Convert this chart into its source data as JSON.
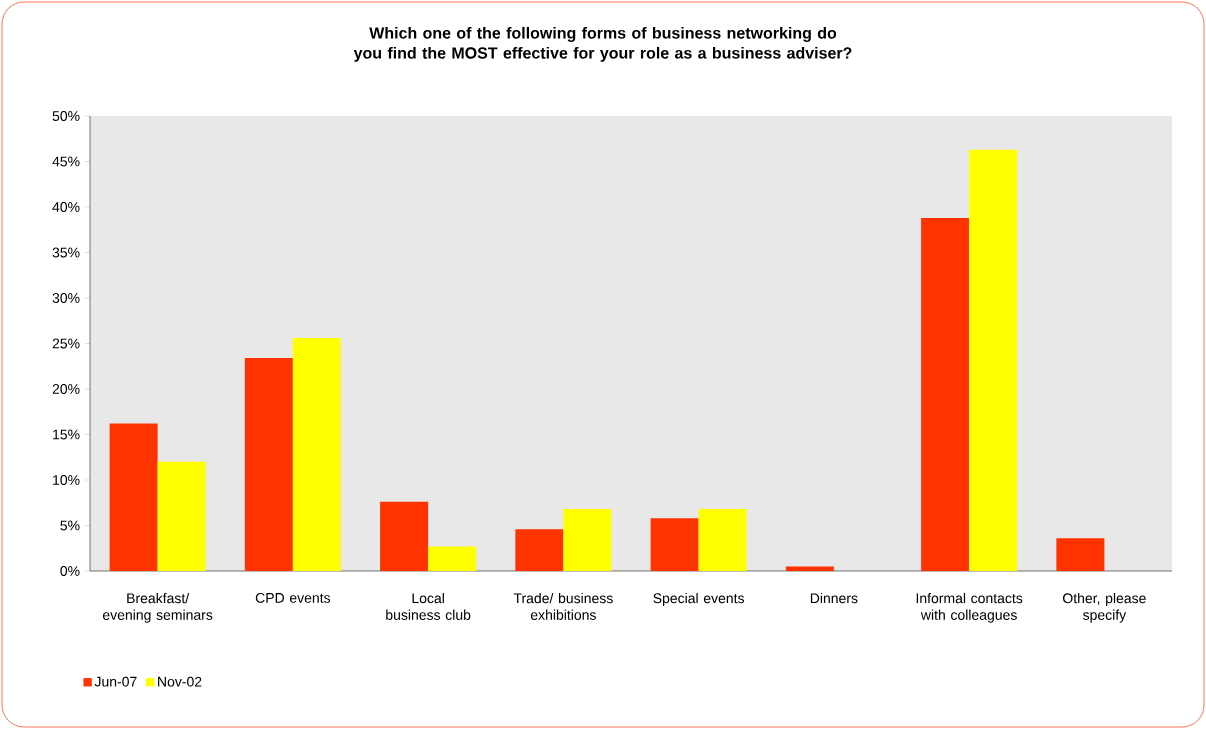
{
  "chart_data": {
    "type": "bar",
    "title": "Which one of the following forms of business networking do you find the MOST effective for your role as a business adviser?",
    "categories": [
      "Breakfast/ evening seminars",
      "CPD events",
      "Local business club",
      "Trade/ business exhibitions",
      "Special events",
      "Dinners",
      "Informal contacts with colleagues",
      "Other, please specify"
    ],
    "series": [
      {
        "name": "Jun-07",
        "color": "#ff3300",
        "values": [
          16.2,
          23.4,
          7.6,
          4.6,
          5.8,
          0.5,
          38.8,
          3.6
        ]
      },
      {
        "name": "Nov-02",
        "color": "#ffff00",
        "values": [
          12.0,
          25.6,
          2.7,
          6.8,
          6.8,
          0,
          46.3,
          0
        ]
      }
    ],
    "ylim": [
      0,
      50
    ],
    "yticks": [
      {
        "value": 0,
        "label": "0%"
      },
      {
        "value": 5,
        "label": "5%"
      },
      {
        "value": 10,
        "label": "10%"
      },
      {
        "value": 15,
        "label": "15%"
      },
      {
        "value": 20,
        "label": "20%"
      },
      {
        "value": 25,
        "label": "25%"
      },
      {
        "value": 30,
        "label": "30%"
      },
      {
        "value": 35,
        "label": "35%"
      },
      {
        "value": 40,
        "label": "40%"
      },
      {
        "value": 45,
        "label": "45%"
      },
      {
        "value": 50,
        "label": "50%"
      }
    ],
    "grid": false,
    "legend": "bottom left"
  }
}
